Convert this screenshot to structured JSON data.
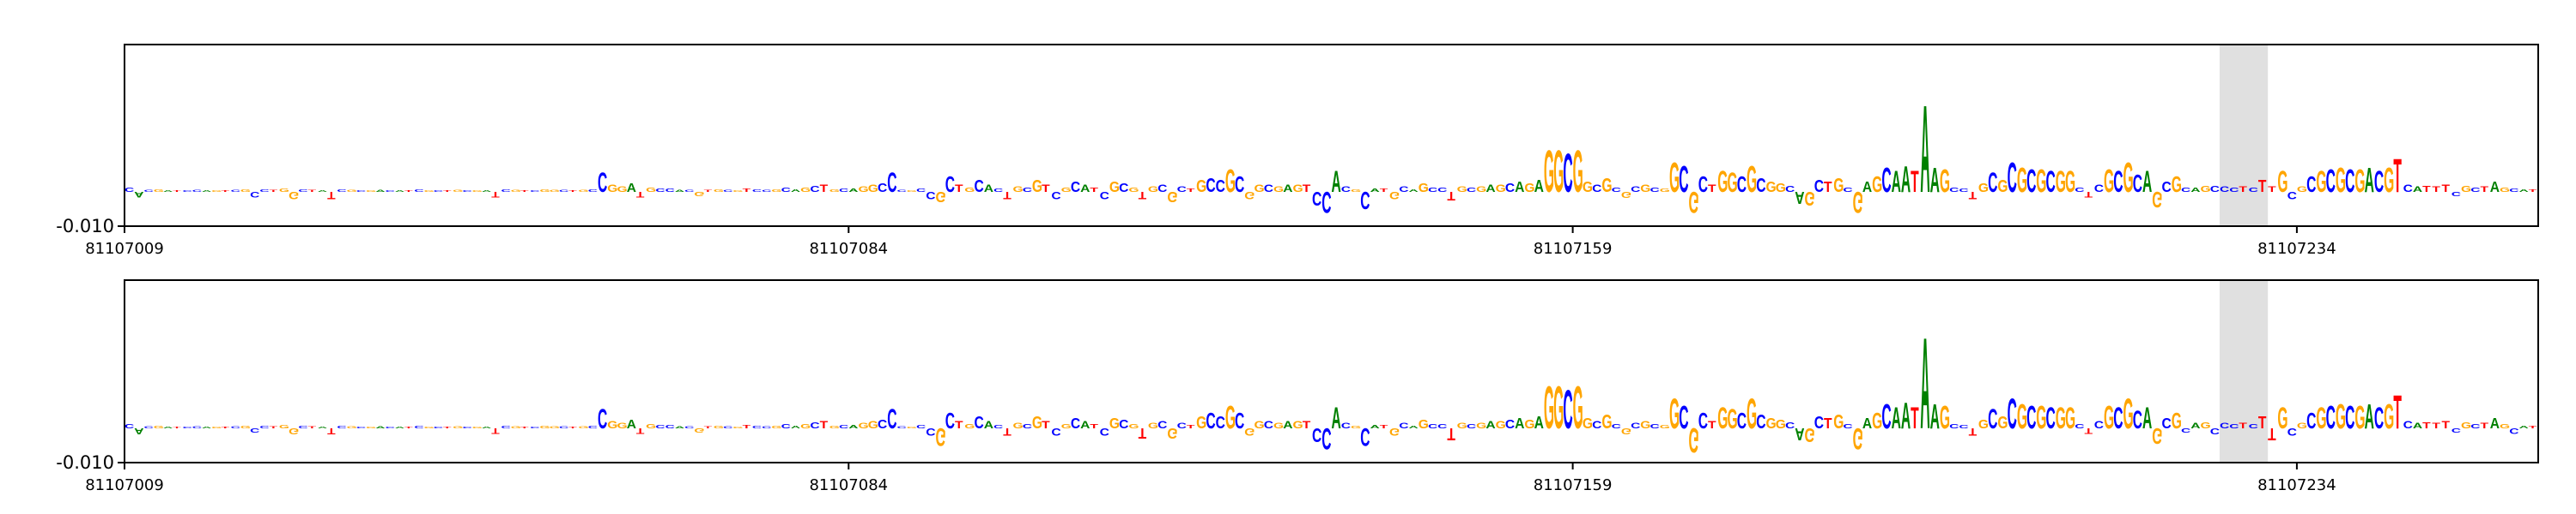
{
  "chart_data": [
    {
      "type": "logo",
      "sequence": "CACGATCCAGTCGCCTGGCTATCGCGACATCGCTGCGATCGTCGGCTGCCGGATGCCACGTGCGTCCGCAGCTGCAGGCCCGCCGCTGCACTGCGTCGCATCGCGTGCGCTGCCGCGGCGAGTCCACGCATGCAGCCTGCGAGCAGAGGCGGCGCGCGCGGCGCTGGCGCGGCAGCTGCGAGCAATAAGCCTGCGCGCGCGGCTCGCGCAGCGCAGCCCTCTTGCGCGCGCGACGTCATTTCGCTAGCAT",
      "values": [
        0.0012,
        -0.0015,
        0.0006,
        0.0008,
        0.0005,
        0.0004,
        0.0005,
        0.0006,
        0.0005,
        0.0004,
        0.0005,
        0.0006,
        0.0008,
        -0.0015,
        0.0008,
        0.0006,
        0.001,
        -0.002,
        0.0007,
        0.0006,
        0.0005,
        -0.002,
        0.0008,
        0.0006,
        0.0005,
        0.0004,
        0.0006,
        0.0005,
        0.0004,
        0.0005,
        0.0008,
        0.0005,
        0.0004,
        0.0005,
        0.0006,
        0.0005,
        0.0005,
        0.0004,
        -0.0015,
        0.0008,
        0.0006,
        0.0005,
        0.0005,
        0.0008,
        0.0006,
        0.0006,
        0.0005,
        0.0006,
        0.0008,
        0.0055,
        0.002,
        0.0015,
        0.0025,
        -0.0015,
        0.0012,
        0.001,
        0.001,
        0.0006,
        0.0006,
        -0.0012,
        0.0006,
        0.0008,
        0.0006,
        0.0005,
        0.001,
        0.0008,
        0.0006,
        0.0008,
        0.0012,
        0.0008,
        0.0012,
        0.0018,
        0.002,
        0.0008,
        0.001,
        0.001,
        0.0015,
        0.002,
        0.0025,
        0.0055,
        0.0006,
        0.0005,
        0.001,
        -0.002,
        -0.003,
        0.0045,
        0.002,
        0.0012,
        0.0035,
        0.002,
        0.001,
        -0.002,
        0.0015,
        0.0012,
        0.0035,
        0.002,
        -0.002,
        0.0012,
        0.003,
        0.002,
        0.0012,
        -0.002,
        0.003,
        0.0025,
        0.0012,
        -0.002,
        0.0015,
        0.002,
        -0.003,
        0.0015,
        0.001,
        0.0035,
        0.004,
        0.0035,
        0.0065,
        0.0045,
        -0.002,
        0.002,
        0.002,
        0.0015,
        0.002,
        0.002,
        0.002,
        -0.004,
        -0.006,
        0.006,
        0.0015,
        0.0008,
        -0.005,
        0.001,
        0.001,
        -0.002,
        0.0015,
        0.0008,
        0.0025,
        0.0012,
        0.0012,
        -0.0025,
        0.0015,
        0.0012,
        0.0015,
        0.002,
        0.002,
        0.0025,
        0.003,
        0.0025,
        0.0035,
        0.012,
        0.012,
        0.011,
        0.012,
        0.003,
        0.002,
        0.004,
        0.0012,
        -0.0018,
        0.0015,
        0.002,
        0.0012,
        0.001,
        0.0085,
        0.0075,
        -0.006,
        0.0045,
        0.002,
        0.006,
        0.0055,
        0.0045,
        0.0075,
        0.004,
        0.003,
        0.0025,
        0.0018,
        -0.0035,
        -0.004,
        0.0035,
        0.003,
        0.004,
        0.0012,
        -0.006,
        0.003,
        0.0045,
        0.007,
        0.006,
        0.0075,
        0.006,
        0.025,
        0.007,
        0.0065,
        0.0012,
        0.001,
        -0.002,
        0.0025,
        0.0055,
        0.0035,
        0.0085,
        0.007,
        0.0065,
        0.0065,
        0.006,
        0.006,
        0.006,
        0.0012,
        -0.0015,
        0.002,
        0.0065,
        0.006,
        0.0085,
        0.005,
        0.006,
        -0.0045,
        0.003,
        0.0045,
        0.0012,
        0.0012,
        0.0018,
        0.0018,
        0.0015,
        0.0012,
        0.0015,
        0.0012,
        0.0035,
        0.0015,
        0.006,
        -0.002,
        0.0015,
        0.0045,
        0.006,
        0.0065,
        0.007,
        0.0065,
        0.0065,
        0.007,
        0.006,
        0.007,
        0.0095,
        0.002,
        0.0015,
        0.0018,
        0.0015,
        0.002,
        -0.0012,
        0.0018,
        0.0012,
        0.0015,
        0.003,
        0.0012,
        0.001,
        0.0008,
        0.0008
      ],
      "colors": {
        "A": "#008000",
        "C": "#0000ff",
        "G": "#ffa500",
        "T": "#ff0000"
      },
      "highlight": [
        81107226,
        81107231
      ],
      "xlim": [
        81107009,
        81107259
      ],
      "xticks": [
        81107009,
        81107084,
        81107159,
        81107234
      ],
      "ylim": [
        -0.01,
        0.043
      ],
      "yticks": [
        {
          "value": -0.01,
          "label": "-0.010"
        }
      ]
    },
    {
      "type": "logo",
      "sequence": "CACGATCCAGTCGCCTGGCTATCGCGACATCGCTGCGATCGTCGGCTGCCGGATGCCACGTGCGTCCGCAGCTGCAGGCCCGCCGCTGCACTGCGTCGCATCGCGTGCGCTGCCGCGGCGAGTCCACGCATGCAGCCTGCGAGCAGAGGCGGCGCGCGCGGCGCTGGCGCGGCAGCTGCGAGCAATAAGCCTGCGCGCGCGGCTCGCGCAGCGCAGCCCTCTTGCGCGCGCGACGTCATTTCGCTAGCAT",
      "values": [
        0.0012,
        -0.0018,
        0.0006,
        0.0008,
        0.0005,
        0.0004,
        0.0005,
        0.0006,
        0.0005,
        0.0004,
        0.0005,
        0.0006,
        0.0008,
        -0.0012,
        0.0008,
        0.0006,
        0.001,
        -0.0018,
        0.0007,
        0.0006,
        0.0005,
        -0.0018,
        0.0008,
        0.0006,
        0.0005,
        0.0004,
        0.0006,
        0.0005,
        0.0004,
        0.0005,
        0.0008,
        0.0005,
        0.0004,
        0.0005,
        0.0006,
        0.0005,
        0.0005,
        0.0004,
        -0.0015,
        0.0008,
        0.0006,
        0.0005,
        0.0005,
        0.0008,
        0.0006,
        0.0006,
        0.0005,
        0.0006,
        0.0008,
        0.0055,
        0.002,
        0.0015,
        0.0025,
        -0.0015,
        0.0012,
        0.001,
        0.001,
        0.0006,
        0.0006,
        -0.0012,
        0.0006,
        0.0008,
        0.0006,
        0.0005,
        0.001,
        0.0008,
        0.0006,
        0.0008,
        0.0012,
        0.0008,
        0.0012,
        0.0018,
        0.002,
        0.0008,
        0.001,
        0.001,
        0.0015,
        0.002,
        0.0025,
        0.0055,
        0.0006,
        0.0005,
        0.001,
        -0.002,
        -0.005,
        0.0045,
        0.002,
        0.0012,
        0.0035,
        0.002,
        0.001,
        -0.002,
        0.0015,
        0.0012,
        0.0035,
        0.002,
        -0.002,
        0.0012,
        0.003,
        0.002,
        0.0012,
        -0.002,
        0.003,
        0.0025,
        0.0012,
        -0.003,
        0.0015,
        0.002,
        -0.003,
        0.0015,
        0.001,
        0.0035,
        0.0045,
        0.0035,
        0.0065,
        0.0045,
        -0.002,
        0.002,
        0.002,
        0.0015,
        0.002,
        0.002,
        0.002,
        -0.004,
        -0.006,
        0.006,
        0.0015,
        0.0008,
        -0.005,
        0.001,
        0.001,
        -0.002,
        0.0015,
        0.0008,
        0.0025,
        0.0012,
        0.0012,
        -0.0035,
        0.0015,
        0.0012,
        0.0015,
        0.002,
        0.002,
        0.0025,
        0.003,
        0.0025,
        0.0035,
        0.012,
        0.012,
        0.011,
        0.012,
        0.003,
        0.002,
        0.004,
        0.0012,
        -0.0018,
        0.0015,
        0.002,
        0.0012,
        0.001,
        0.0085,
        0.0065,
        -0.007,
        0.0045,
        0.002,
        0.006,
        0.0055,
        0.0045,
        0.0085,
        0.004,
        0.003,
        0.0025,
        0.0018,
        -0.0035,
        -0.004,
        0.0035,
        0.003,
        0.004,
        0.0012,
        -0.006,
        0.003,
        0.0045,
        0.007,
        0.006,
        0.0075,
        0.006,
        0.026,
        0.007,
        0.0065,
        0.0012,
        0.001,
        -0.002,
        0.0025,
        0.0055,
        0.0035,
        0.0085,
        0.007,
        0.0065,
        0.0065,
        0.006,
        0.006,
        0.006,
        0.0012,
        -0.0015,
        0.002,
        0.0065,
        0.006,
        0.0085,
        0.005,
        0.006,
        -0.0045,
        0.003,
        0.0045,
        -0.0012,
        0.0015,
        0.0018,
        -0.0018,
        0.0015,
        0.0012,
        0.0015,
        0.0012,
        0.0035,
        -0.0035,
        0.006,
        -0.002,
        0.0015,
        0.0045,
        0.006,
        0.0065,
        0.007,
        0.0065,
        0.0065,
        0.007,
        0.006,
        0.007,
        0.0095,
        0.002,
        0.0015,
        0.0018,
        0.0015,
        0.002,
        -0.0012,
        0.0018,
        0.0012,
        0.0015,
        0.003,
        0.0012,
        -0.0015,
        0.0008,
        0.0008
      ],
      "colors": {
        "A": "#008000",
        "C": "#0000ff",
        "G": "#ffa500",
        "T": "#ff0000"
      },
      "highlight": [
        81107226,
        81107231
      ],
      "xlim": [
        81107009,
        81107259
      ],
      "xticks": [
        81107009,
        81107084,
        81107159,
        81107234
      ],
      "ylim": [
        -0.01,
        0.043
      ],
      "yticks": [
        {
          "value": -0.01,
          "label": "-0.010"
        }
      ]
    }
  ]
}
